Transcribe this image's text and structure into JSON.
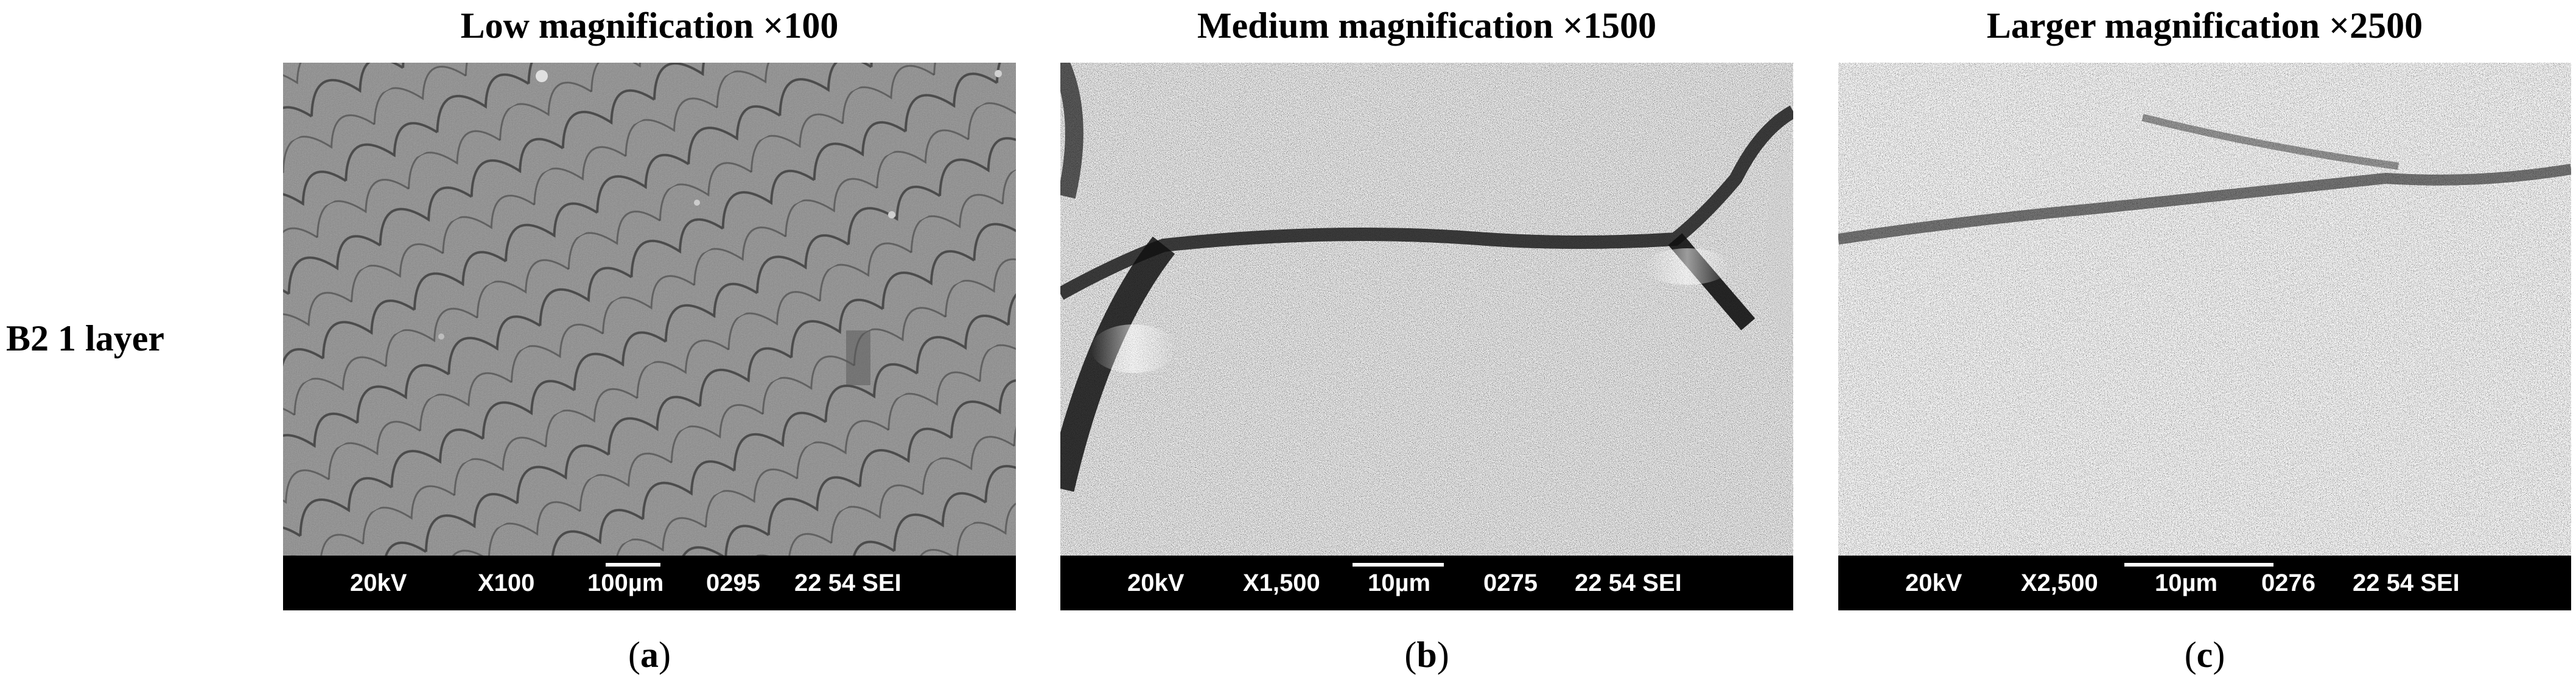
{
  "column_titles": [
    "Low magnification ×100",
    "Medium magnification ×1500",
    "Larger magnification ×2500"
  ],
  "row_label": "B2 1 layer",
  "panels": [
    {
      "caption_letter": "a",
      "databar": {
        "voltage": "20kV",
        "magnification": "X100",
        "scale": "100µm",
        "image_no": "0295",
        "settings": "22 54 SEI"
      },
      "texture": "low-magnification-scale-pattern"
    },
    {
      "caption_letter": "b",
      "databar": {
        "voltage": "20kV",
        "magnification": "X1,500",
        "scale": "10µm",
        "image_no": "0275",
        "settings": "22 54 SEI"
      },
      "texture": "medium-magnification-grain"
    },
    {
      "caption_letter": "c",
      "databar": {
        "voltage": "20kV",
        "magnification": "X2,500",
        "scale": "10µm",
        "image_no": "0276",
        "settings": "22 54 SEI"
      },
      "texture": "high-magnification-grain"
    }
  ]
}
